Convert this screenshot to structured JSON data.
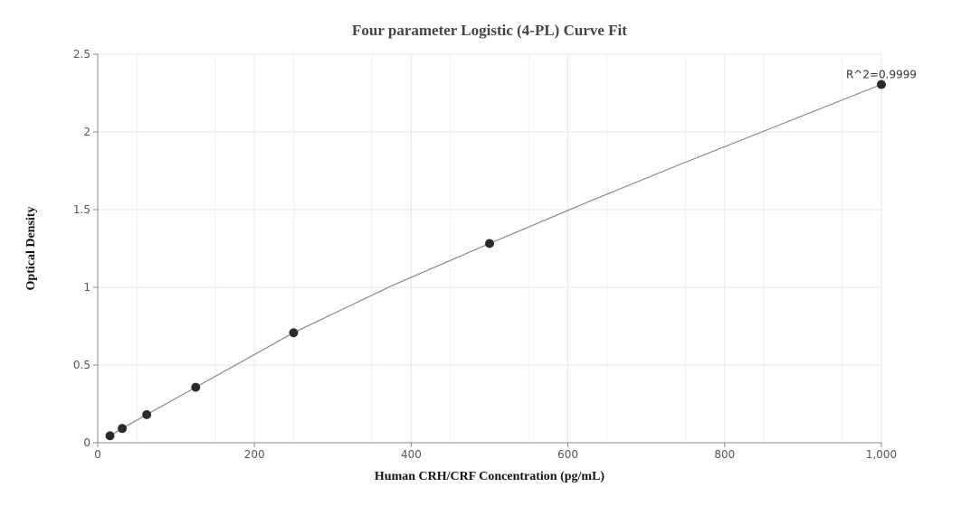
{
  "chart_data": {
    "type": "scatter",
    "title": "Four parameter Logistic (4-PL) Curve Fit",
    "xlabel": "Human CRH/CRF Concentration (pg/mL)",
    "ylabel": "Optical Density",
    "xlim": [
      0,
      1000
    ],
    "ylim": [
      0,
      2.5
    ],
    "xticks": [
      0,
      200,
      400,
      600,
      800,
      1000
    ],
    "xtick_labels": [
      "0",
      "200",
      "400",
      "600",
      "800",
      "1,000"
    ],
    "yticks": [
      0,
      0.5,
      1,
      1.5,
      2,
      2.5
    ],
    "ytick_labels": [
      "0",
      "0.5",
      "1",
      "1.5",
      "2",
      "2.5"
    ],
    "grid": true,
    "points": {
      "x": [
        15.6,
        31.25,
        62.5,
        125,
        250,
        500,
        1000
      ],
      "y": [
        0.045,
        0.092,
        0.181,
        0.357,
        0.708,
        1.282,
        2.305
      ]
    },
    "fit_curve": {
      "type": "4PL",
      "x": [
        15.6,
        31.25,
        62.5,
        125,
        250,
        375,
        500,
        625,
        750,
        875,
        1000
      ],
      "y": [
        0.045,
        0.092,
        0.181,
        0.357,
        0.708,
        1.01,
        1.282,
        1.548,
        1.805,
        2.055,
        2.305
      ]
    },
    "annotation": "R^2=0.9999",
    "colors": {
      "points": "#2b2b2b",
      "curve": "#888888",
      "grid": "#e6e6e6",
      "axis": "#888888"
    }
  }
}
